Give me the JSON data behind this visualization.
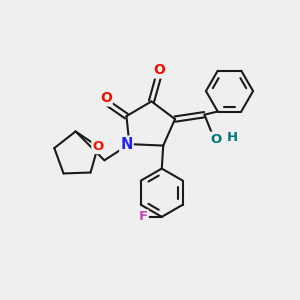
{
  "bg_color": "#efefef",
  "bond_color": "#1a1a1a",
  "bond_width": 1.5,
  "atom_colors": {
    "O": "#ee1100",
    "N": "#2222ee",
    "F": "#cc44bb",
    "OH": "#007777",
    "C": "#1a1a1a"
  },
  "font_size_atom": 9.5
}
